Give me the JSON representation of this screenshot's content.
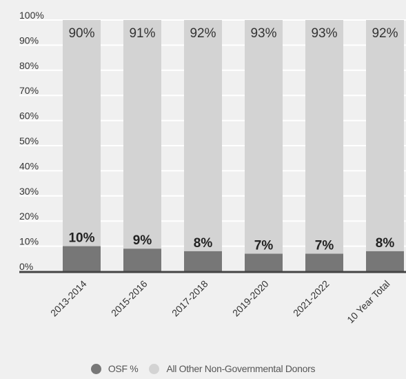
{
  "colors": {
    "background": "#f0f0f0",
    "osf": "#777777",
    "other": "#d3d3d3",
    "grid": "#ffffff",
    "axis": "#444444",
    "text": "#333333",
    "label_dark": "#222222"
  },
  "legend": {
    "osf_label": "OSF %",
    "other_label": "All Other Non-Governmental Donors"
  },
  "chart_data": {
    "type": "bar",
    "stacked": true,
    "title": "",
    "xlabel": "",
    "ylabel": "",
    "ylim": [
      0,
      100
    ],
    "yticks": [
      "0%",
      "10%",
      "20%",
      "30%",
      "40%",
      "50%",
      "60%",
      "70%",
      "80%",
      "90%",
      "100%"
    ],
    "categories": [
      "2013-2014",
      "2015-2016",
      "2017-2018",
      "2019-2020",
      "2021-2022",
      "10 Year Total"
    ],
    "series": [
      {
        "name": "OSF %",
        "values": [
          10,
          9,
          8,
          7,
          7,
          8
        ],
        "labels": [
          "10%",
          "9%",
          "8%",
          "7%",
          "7%",
          "8%"
        ]
      },
      {
        "name": "All Other Non-Governmental Donors",
        "values": [
          90,
          91,
          92,
          93,
          93,
          92
        ],
        "labels": [
          "90%",
          "91%",
          "92%",
          "93%",
          "93%",
          "92%"
        ]
      }
    ],
    "grid": true,
    "legend_position": "bottom"
  }
}
